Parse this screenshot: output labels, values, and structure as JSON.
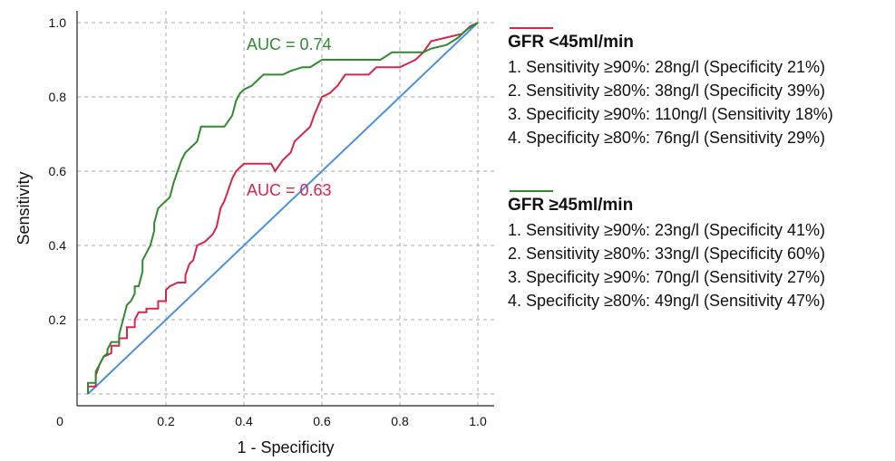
{
  "chart_data": {
    "type": "line",
    "xlabel": "1 - Specificity",
    "ylabel": "Sensitivity",
    "xlim": [
      0,
      1
    ],
    "ylim": [
      0,
      1
    ],
    "xticks": [
      "0",
      "0.2",
      "0.4",
      "0.6",
      "0.8",
      "1.0"
    ],
    "yticks": [
      "0.2",
      "0.4",
      "0.6",
      "0.8",
      "1.0"
    ],
    "grid": true,
    "colors": {
      "red": "#d6264b",
      "green": "#2e8b2e",
      "reference": "#4a90e2",
      "grid": "#aaaaaa"
    },
    "annotations": [
      {
        "text": "AUC = 0.74",
        "series": 0
      },
      {
        "text": "AUC = 0.63",
        "series": 1
      }
    ],
    "series": [
      {
        "name": "GFR ≥45ml/min",
        "color": "#2e8b2e",
        "points": [
          [
            0,
            0
          ],
          [
            0,
            0.03
          ],
          [
            0.02,
            0.03
          ],
          [
            0.02,
            0.06
          ],
          [
            0.03,
            0.08
          ],
          [
            0.04,
            0.1
          ],
          [
            0.05,
            0.11
          ],
          [
            0.05,
            0.12
          ],
          [
            0.06,
            0.14
          ],
          [
            0.08,
            0.14
          ],
          [
            0.08,
            0.16
          ],
          [
            0.09,
            0.2
          ],
          [
            0.1,
            0.24
          ],
          [
            0.11,
            0.25
          ],
          [
            0.12,
            0.27
          ],
          [
            0.12,
            0.29
          ],
          [
            0.13,
            0.29
          ],
          [
            0.14,
            0.33
          ],
          [
            0.14,
            0.36
          ],
          [
            0.15,
            0.38
          ],
          [
            0.16,
            0.4
          ],
          [
            0.17,
            0.44
          ],
          [
            0.17,
            0.46
          ],
          [
            0.18,
            0.5
          ],
          [
            0.19,
            0.51
          ],
          [
            0.2,
            0.52
          ],
          [
            0.21,
            0.53
          ],
          [
            0.22,
            0.57
          ],
          [
            0.23,
            0.6
          ],
          [
            0.24,
            0.63
          ],
          [
            0.25,
            0.65
          ],
          [
            0.26,
            0.66
          ],
          [
            0.28,
            0.68
          ],
          [
            0.29,
            0.72
          ],
          [
            0.35,
            0.72
          ],
          [
            0.37,
            0.75
          ],
          [
            0.38,
            0.79
          ],
          [
            0.39,
            0.81
          ],
          [
            0.4,
            0.82
          ],
          [
            0.42,
            0.83
          ],
          [
            0.43,
            0.84
          ],
          [
            0.44,
            0.85
          ],
          [
            0.45,
            0.86
          ],
          [
            0.5,
            0.86
          ],
          [
            0.52,
            0.87
          ],
          [
            0.55,
            0.88
          ],
          [
            0.57,
            0.88
          ],
          [
            0.6,
            0.9
          ],
          [
            0.75,
            0.9
          ],
          [
            0.78,
            0.92
          ],
          [
            0.86,
            0.92
          ],
          [
            0.88,
            0.93
          ],
          [
            0.92,
            0.94
          ],
          [
            0.95,
            0.96
          ],
          [
            0.97,
            0.98
          ],
          [
            1,
            1
          ]
        ]
      },
      {
        "name": "GFR <45ml/min",
        "color": "#d6264b",
        "points": [
          [
            0,
            0
          ],
          [
            0,
            0.02
          ],
          [
            0.02,
            0.02
          ],
          [
            0.02,
            0.05
          ],
          [
            0.03,
            0.08
          ],
          [
            0.04,
            0.1
          ],
          [
            0.06,
            0.11
          ],
          [
            0.06,
            0.13
          ],
          [
            0.08,
            0.13
          ],
          [
            0.08,
            0.15
          ],
          [
            0.1,
            0.15
          ],
          [
            0.1,
            0.18
          ],
          [
            0.12,
            0.18
          ],
          [
            0.12,
            0.2
          ],
          [
            0.13,
            0.22
          ],
          [
            0.15,
            0.22
          ],
          [
            0.15,
            0.23
          ],
          [
            0.18,
            0.23
          ],
          [
            0.18,
            0.25
          ],
          [
            0.2,
            0.25
          ],
          [
            0.2,
            0.28
          ],
          [
            0.21,
            0.29
          ],
          [
            0.23,
            0.3
          ],
          [
            0.25,
            0.3
          ],
          [
            0.25,
            0.32
          ],
          [
            0.26,
            0.35
          ],
          [
            0.27,
            0.36
          ],
          [
            0.28,
            0.4
          ],
          [
            0.3,
            0.41
          ],
          [
            0.32,
            0.43
          ],
          [
            0.33,
            0.45
          ],
          [
            0.34,
            0.5
          ],
          [
            0.35,
            0.52
          ],
          [
            0.36,
            0.55
          ],
          [
            0.37,
            0.58
          ],
          [
            0.38,
            0.6
          ],
          [
            0.4,
            0.62
          ],
          [
            0.47,
            0.62
          ],
          [
            0.48,
            0.6
          ],
          [
            0.5,
            0.63
          ],
          [
            0.52,
            0.65
          ],
          [
            0.53,
            0.68
          ],
          [
            0.55,
            0.7
          ],
          [
            0.57,
            0.72
          ],
          [
            0.58,
            0.75
          ],
          [
            0.6,
            0.8
          ],
          [
            0.62,
            0.81
          ],
          [
            0.64,
            0.83
          ],
          [
            0.66,
            0.86
          ],
          [
            0.72,
            0.86
          ],
          [
            0.74,
            0.88
          ],
          [
            0.8,
            0.88
          ],
          [
            0.82,
            0.89
          ],
          [
            0.84,
            0.9
          ],
          [
            0.86,
            0.92
          ],
          [
            0.88,
            0.95
          ],
          [
            0.92,
            0.96
          ],
          [
            0.96,
            0.97
          ],
          [
            0.98,
            0.99
          ],
          [
            1,
            1
          ]
        ]
      },
      {
        "name": "",
        "color": "#4a90e2",
        "points": [
          [
            0,
            0
          ],
          [
            1,
            1
          ]
        ]
      }
    ]
  },
  "legend": {
    "groups": [
      {
        "color": "#d6264b",
        "title": "GFR <45ml/min",
        "lines": [
          "1. Sensitivity ≥90%: 28ng/l (Specificity 21%)",
          "2. Sensitivity ≥80%: 38ng/l (Specificity 39%)",
          "3. Specificity ≥90%: 110ng/l (Sensitivity 18%)",
          "4. Specificity ≥80%: 76ng/l (Sensitivity 29%)"
        ]
      },
      {
        "color": "#2e8b2e",
        "title": "GFR ≥45ml/min",
        "lines": [
          "1. Sensitivity ≥90%: 23ng/l (Specificity 41%)",
          "2. Sensitivity ≥80%: 33ng/l (Specificity 60%)",
          "3. Specificity ≥90%: 70ng/l (Sensitivity 27%)",
          "4. Specificity ≥80%: 49ng/l (Sensitivity 47%)"
        ]
      }
    ]
  }
}
